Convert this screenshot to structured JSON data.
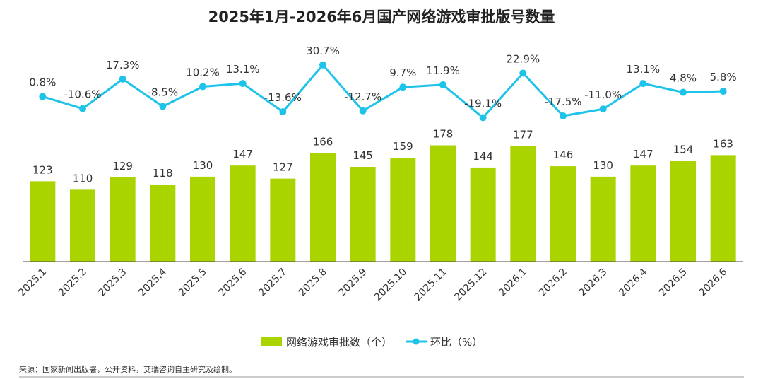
{
  "chart_data": {
    "type": "bar",
    "title": "2025年1月-2026年6月国产网络游戏审批版号数量",
    "categories": [
      "2025.1",
      "2025.2",
      "2025.3",
      "2025.4",
      "2025.5",
      "2025.6",
      "2025.7",
      "2025.8",
      "2025.9",
      "2025.10",
      "2025.11",
      "2025.12",
      "2026.1",
      "2026.2",
      "2026.3",
      "2026.4",
      "2026.5",
      "2026.6"
    ],
    "series": [
      {
        "name": "网络游戏审批数（个）",
        "type": "bar",
        "color": "#aad400",
        "values": [
          123,
          110,
          129,
          118,
          130,
          147,
          127,
          166,
          145,
          159,
          178,
          144,
          177,
          146,
          130,
          147,
          154,
          163
        ]
      },
      {
        "name": "环比（%）",
        "type": "line",
        "color": "#1ec3ea",
        "values": [
          0.8,
          -10.6,
          17.3,
          -8.5,
          10.2,
          13.1,
          -13.6,
          30.7,
          -12.7,
          9.7,
          11.9,
          -19.1,
          22.9,
          -17.5,
          -11.0,
          13.1,
          4.8,
          5.8
        ],
        "labels": [
          "0.8%",
          "-10.6%",
          "17.3%",
          "-8.5%",
          "10.2%",
          "13.1%",
          "-13.6%",
          "30.7%",
          "-12.7%",
          "9.7%",
          "11.9%",
          "-19.1%",
          "22.9%",
          "-17.5%",
          "-11.0%",
          "13.1%",
          "4.8%",
          "5.8%"
        ]
      }
    ],
    "bar_ylim": [
      0,
      300
    ],
    "line_ylim": [
      -25,
      35
    ],
    "grid": false,
    "legend": "bottom-center"
  },
  "source": "来源：国家新闻出版署，公开资料，艾瑞咨询自主研究及绘制。"
}
